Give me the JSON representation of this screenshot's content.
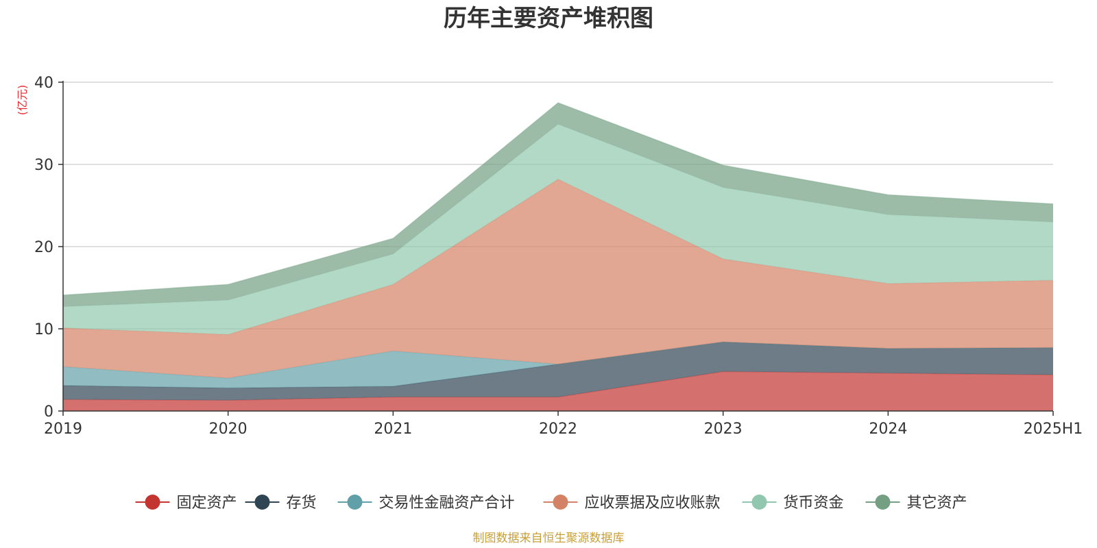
{
  "chart_data": {
    "type": "area",
    "stacked": true,
    "title": "历年主要资产堆积图",
    "unit_label": "(亿元)",
    "ylim": [
      0,
      40
    ],
    "yticks": [
      0,
      10,
      20,
      30,
      40
    ],
    "x": [
      "2019",
      "2020",
      "2021",
      "2022",
      "2023",
      "2024",
      "2025H1"
    ],
    "series": [
      {
        "name": "固定资产",
        "color": "#c23531",
        "values": [
          1.4,
          1.3,
          1.7,
          1.7,
          4.8,
          4.6,
          4.4
        ]
      },
      {
        "name": "存货",
        "color": "#2f4554",
        "values": [
          1.7,
          1.5,
          1.3,
          4.0,
          3.6,
          3.0,
          3.3
        ]
      },
      {
        "name": "交易性金融资产合计",
        "color": "#61a0a8",
        "values": [
          2.3,
          1.2,
          4.3,
          0.0,
          0.0,
          0.0,
          0.0
        ]
      },
      {
        "name": "应收票据及应收账款",
        "color": "#d48265",
        "values": [
          4.7,
          5.3,
          8.1,
          22.5,
          10.1,
          7.9,
          8.2
        ]
      },
      {
        "name": "货币资金",
        "color": "#91c7ae",
        "values": [
          2.6,
          4.2,
          3.7,
          6.7,
          8.7,
          8.4,
          7.1
        ]
      },
      {
        "name": "其它资产",
        "color": "#749f83",
        "values": [
          1.4,
          1.9,
          1.9,
          2.6,
          2.7,
          2.4,
          2.2
        ]
      }
    ],
    "grid": true,
    "legend_position": "bottom"
  },
  "source_note": "制图数据来自恒生聚源数据库"
}
